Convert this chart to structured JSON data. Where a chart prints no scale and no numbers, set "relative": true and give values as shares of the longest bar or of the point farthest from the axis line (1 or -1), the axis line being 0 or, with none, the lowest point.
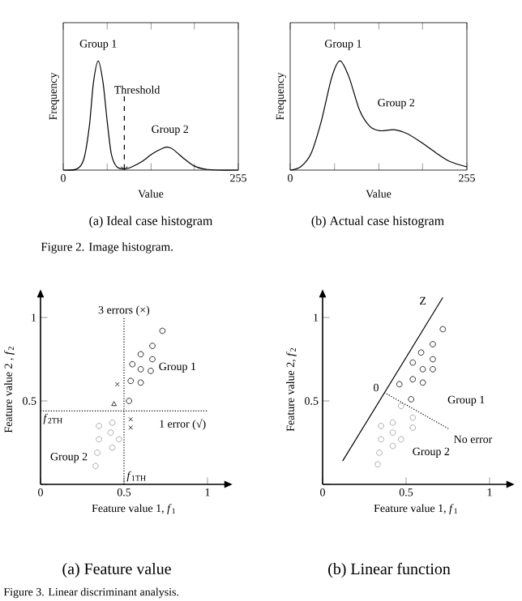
{
  "chart_data": [
    {
      "type": "line",
      "relative": true,
      "xlabel": "Value",
      "ylabel": "Frequency",
      "xlim": [
        0,
        255
      ],
      "xticks": [
        0,
        {
          "value": 64,
          "label": null
        },
        {
          "value": 128,
          "label": null
        },
        {
          "value": 191,
          "label": null
        },
        255
      ],
      "tick_labels": "x",
      "series": [
        {
          "color": "#000000",
          "x": [
            0,
            20,
            30,
            38,
            44,
            51,
            58,
            64,
            70,
            78,
            89,
            100,
            115,
            130,
            145,
            152,
            160,
            175,
            190,
            205,
            225,
            255
          ],
          "values": [
            0,
            0.01,
            0.1,
            0.4,
            0.8,
            1,
            0.8,
            0.45,
            0.15,
            0.03,
            0.01,
            0.03,
            0.08,
            0.15,
            0.2,
            0.21,
            0.19,
            0.11,
            0.04,
            0.01,
            0,
            0
          ]
        }
      ],
      "ref_lines": [
        {
          "axis": "x",
          "value": 89,
          "label": "Threshold",
          "line_style": "dashed"
        }
      ],
      "annotations": [
        "Group 1",
        "Group 2",
        "(a) Ideal case histogram"
      ]
    },
    {
      "type": "line",
      "relative": true,
      "xlabel": "Value",
      "ylabel": "Frequency",
      "xlim": [
        0,
        255
      ],
      "xticks": [
        0,
        {
          "value": 64,
          "label": null
        },
        {
          "value": 128,
          "label": null
        },
        {
          "value": 191,
          "label": null
        },
        255
      ],
      "tick_labels": "x",
      "series": [
        {
          "color": "#000000",
          "x": [
            0,
            15,
            30,
            45,
            60,
            72,
            85,
            100,
            115,
            130,
            150,
            170,
            190,
            210,
            230,
            255
          ],
          "values": [
            0,
            0.03,
            0.15,
            0.45,
            0.85,
            1,
            0.85,
            0.55,
            0.4,
            0.36,
            0.37,
            0.33,
            0.25,
            0.16,
            0.08,
            0.03
          ]
        }
      ],
      "annotations": [
        "Group 1",
        "Group 2",
        "(b) Actual case histogram",
        "Figure 2. Image histogram."
      ]
    },
    {
      "type": "scatter",
      "xlabel": "Feature value 1, *f*$_{1}$",
      "ylabel": "Feature value 2 , *f*$_{2}$",
      "xlim": [
        0,
        1.12
      ],
      "ylim": [
        0,
        1.14
      ],
      "xticks": [
        0,
        0.5,
        1
      ],
      "yticks": [
        {
          "value": 0,
          "label": null
        },
        0.5,
        1
      ],
      "series": [
        {
          "color": "#000000",
          "marker": "circle",
          "x": [
            0.73,
            0.67,
            0.6,
            0.67,
            0.55,
            0.6,
            0.66,
            0.54,
            0.6,
            0.53
          ],
          "values": [
            0.92,
            0.83,
            0.78,
            0.75,
            0.72,
            0.69,
            0.68,
            0.62,
            0.61,
            0.5
          ]
        },
        {
          "color": "#999999",
          "marker": "circle",
          "x": [
            0.35,
            0.43,
            0.35,
            0.42,
            0.47,
            0.34,
            0.43,
            0.33
          ],
          "values": [
            0.35,
            0.37,
            0.27,
            0.31,
            0.27,
            0.19,
            0.22,
            0.11
          ]
        },
        {
          "color": "#000000",
          "marker": "cross",
          "x": [
            0.46,
            0.54,
            0.54
          ],
          "values": [
            0.6,
            0.39,
            0.34
          ]
        },
        {
          "color": "#000000",
          "marker": "triangle",
          "x": [
            0.44
          ],
          "values": [
            0.48
          ]
        }
      ],
      "ref_lines": [
        {
          "axis": "x",
          "value": 0.5,
          "label": "*f*$_{1TH}$",
          "line_style": "dotted"
        },
        {
          "axis": "y",
          "value": 0.44,
          "label": "*f*$_{2TH}$",
          "line_style": "dotted"
        }
      ],
      "annotations": [
        "3 errors (×)",
        "Group 1",
        "1 error (√)",
        "Group 2",
        "(a) Feature value",
        "Figure 3. Linear discriminant analysis."
      ]
    },
    {
      "type": "scatter",
      "xlabel": "Feature value 1, *f*$_{1}$",
      "ylabel": "Feature value 2, *f*$_{2}$",
      "xlim": [
        0,
        1.12
      ],
      "ylim": [
        0,
        1.14
      ],
      "xticks": [
        0,
        0.5,
        1
      ],
      "yticks": [
        {
          "value": 0,
          "label": null
        },
        0.5,
        1
      ],
      "series": [
        {
          "color": "#000000",
          "marker": "circle",
          "x": [
            0.72,
            0.66,
            0.66,
            0.59,
            0.54,
            0.6,
            0.66,
            0.54,
            0.6,
            0.46,
            0.53
          ],
          "values": [
            0.93,
            0.84,
            0.75,
            0.79,
            0.73,
            0.69,
            0.69,
            0.63,
            0.61,
            0.6,
            0.51
          ]
        },
        {
          "color": "#999999",
          "marker": "circle",
          "x": [
            0.47,
            0.35,
            0.42,
            0.54,
            0.54,
            0.35,
            0.42,
            0.47,
            0.34,
            0.42,
            0.33
          ],
          "values": [
            0.47,
            0.35,
            0.37,
            0.4,
            0.34,
            0.27,
            0.31,
            0.27,
            0.19,
            0.23,
            0.12
          ]
        },
        {
          "type": "line",
          "color": "#000000",
          "x": [
            0.12,
            0.72
          ],
          "values": [
            0.14,
            1.12
          ]
        },
        {
          "type": "line",
          "color": "#000000",
          "line_style": "dotted",
          "x": [
            0.37,
            0.76
          ],
          "values": [
            0.55,
            0.33
          ]
        }
      ],
      "annotations": [
        "Z",
        "0",
        "Group 1",
        "No error",
        "Group 2",
        "(b) Linear function"
      ]
    }
  ]
}
